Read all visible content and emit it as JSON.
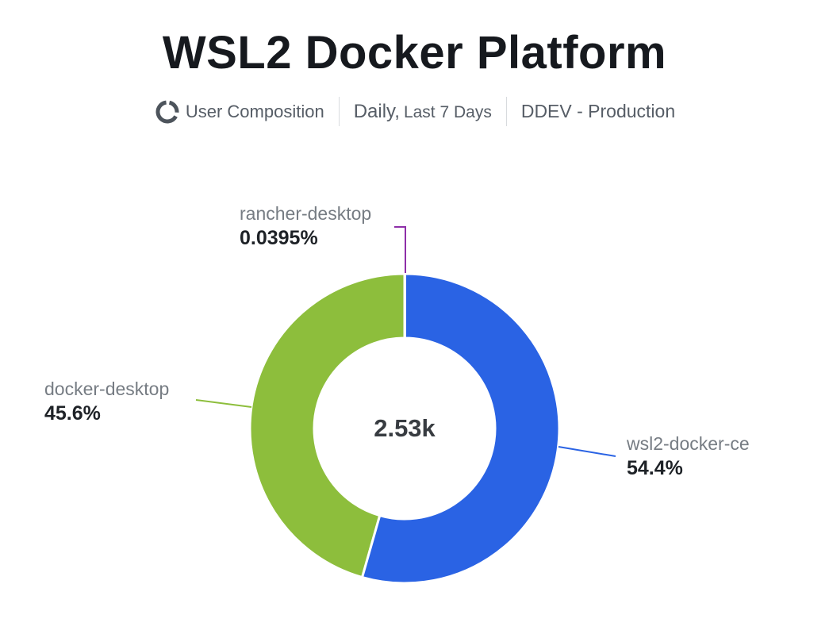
{
  "header": {
    "title": "WSL2 Docker Platform",
    "metric": "User Composition",
    "period_primary": "Daily,",
    "period_secondary": "Last 7 Days",
    "environment": "DDEV - Production"
  },
  "chart_data": {
    "type": "pie",
    "donut": true,
    "title": "WSL2 Docker Platform",
    "subtitle": "User Composition | Daily, Last 7 Days | DDEV - Production",
    "center_total": "2.53k",
    "start_angle": "12-oclock",
    "direction": "clockwise",
    "legend_position": "outside-callout-labels",
    "slices": [
      {
        "label": "rancher-desktop",
        "value_pct": 0.0395,
        "pct_label": "0.0395%",
        "color": "#8e2fa8"
      },
      {
        "label": "wsl2-docker-ce",
        "value_pct": 54.4,
        "pct_label": "54.4%",
        "color": "#2a63e4"
      },
      {
        "label": "docker-desktop",
        "value_pct": 45.6,
        "pct_label": "45.6%",
        "color": "#8dbe3c"
      }
    ]
  }
}
